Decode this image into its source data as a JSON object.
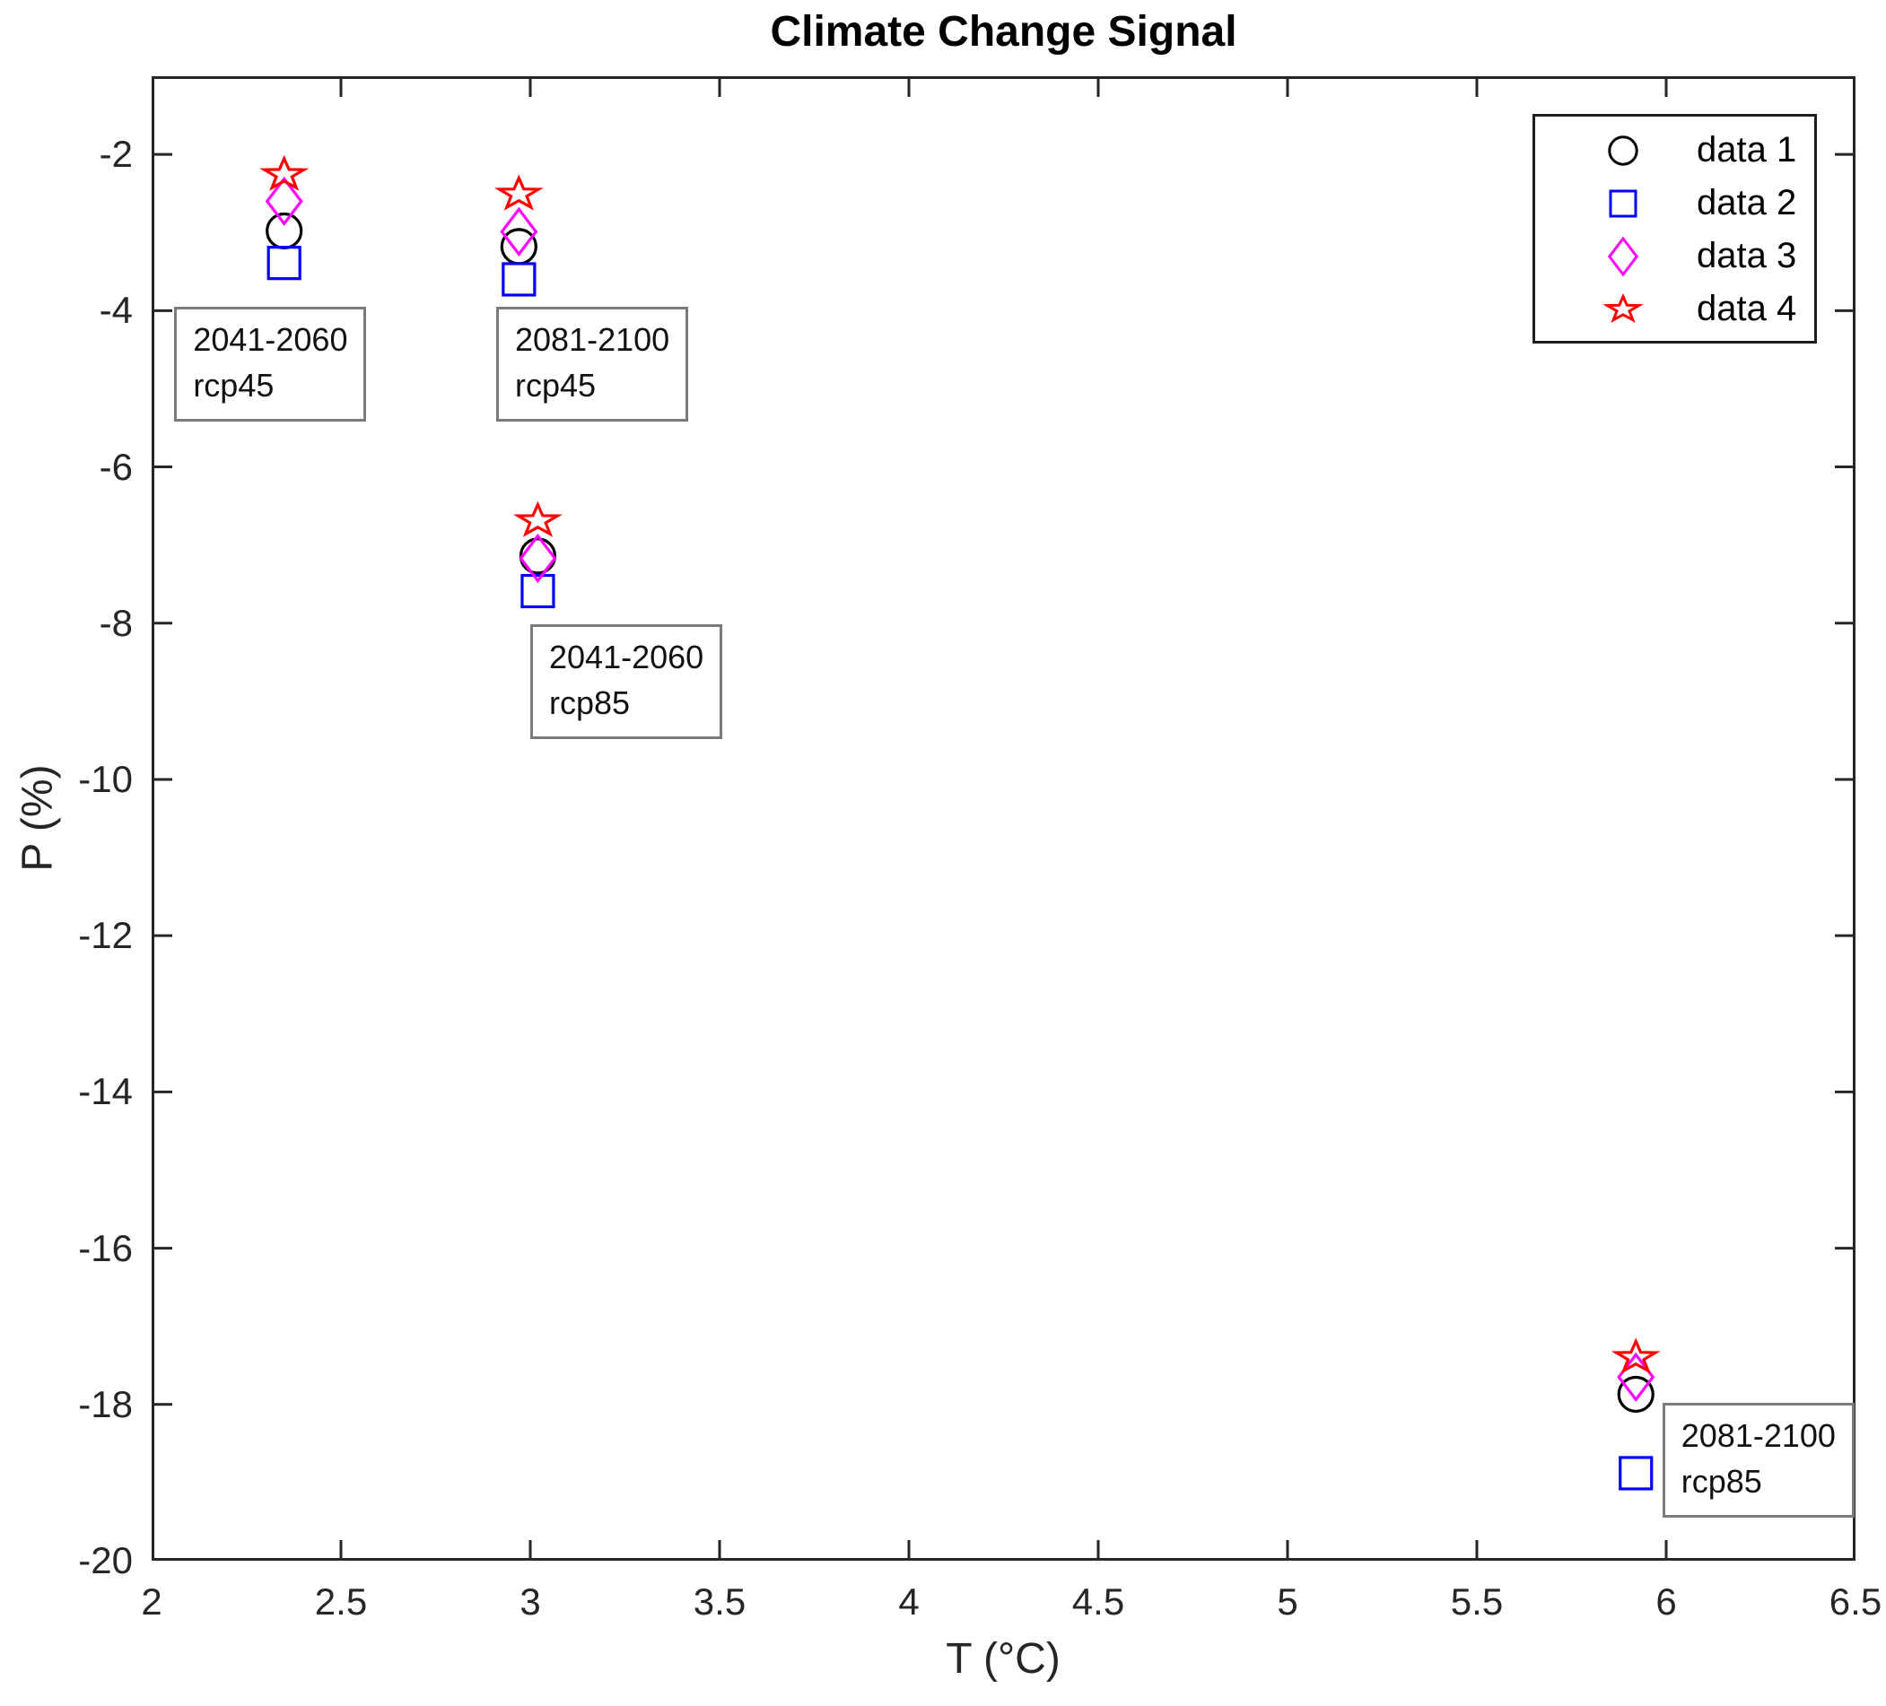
{
  "title": "Climate Change Signal",
  "axes": {
    "xlabel": "T (°C)",
    "ylabel": "P (%)",
    "xlim": [
      2,
      6.5
    ],
    "ylim": [
      -20,
      -1
    ],
    "x_tick_values": [
      2,
      2.5,
      3,
      3.5,
      4,
      4.5,
      5,
      5.5,
      6,
      6.5
    ],
    "x_tick_labels": [
      "2",
      "2.5",
      "3",
      "3.5",
      "4",
      "4.5",
      "5",
      "5.5",
      "6",
      "6.5"
    ],
    "y_tick_values": [
      -20,
      -18,
      -16,
      -14,
      -12,
      -10,
      -8,
      -6,
      -4,
      -2
    ],
    "y_tick_labels": [
      "-20",
      "-18",
      "-16",
      "-14",
      "-12",
      "-10",
      "-8",
      "-6",
      "-4",
      "-2"
    ],
    "axis_color": "#262626",
    "grid": false
  },
  "legend": {
    "position": "top-right",
    "items": [
      {
        "label": "data 1",
        "marker": "circle",
        "color": "#000000"
      },
      {
        "label": "data 2",
        "marker": "square",
        "color": "#0000ff"
      },
      {
        "label": "data 3",
        "marker": "diamond",
        "color": "#ff00ff"
      },
      {
        "label": "data 4",
        "marker": "star",
        "color": "#ff0000"
      }
    ]
  },
  "chart_data": {
    "type": "scatter",
    "title": "Climate Change Signal",
    "xlabel": "T (°C)",
    "ylabel": "P (%)",
    "xlim": [
      2,
      6.5
    ],
    "ylim": [
      -20,
      -1
    ],
    "legend_position": "top-right",
    "x": [
      2.35,
      2.97,
      3.02,
      5.92
    ],
    "series": [
      {
        "name": "data 1",
        "marker": "circle",
        "color": "#000000",
        "y": [
          -2.98,
          -3.18,
          -7.14,
          -17.87
        ]
      },
      {
        "name": "data 2",
        "marker": "square",
        "color": "#0000ff",
        "y": [
          -3.39,
          -3.6,
          -7.59,
          -18.88
        ]
      },
      {
        "name": "data 3",
        "marker": "diamond",
        "color": "#ff00ff",
        "y": [
          -2.6,
          -2.99,
          -7.17,
          -17.65
        ]
      },
      {
        "name": "data 4",
        "marker": "star",
        "color": "#ff0000",
        "y": [
          -2.26,
          -2.51,
          -6.69,
          -17.4
        ]
      }
    ],
    "annotations": [
      {
        "lines": [
          "2041-2060",
          "rcp45"
        ],
        "x": 2.06,
        "y": -3.95
      },
      {
        "lines": [
          "2081-2100",
          "rcp45"
        ],
        "x": 2.91,
        "y": -3.95
      },
      {
        "lines": [
          "2041-2060",
          "rcp85"
        ],
        "x": 3.0,
        "y": -8.01
      },
      {
        "lines": [
          "2081-2100",
          "rcp85"
        ],
        "x": 5.99,
        "y": -17.98
      }
    ],
    "annotation_border_color": "#7a7a7a",
    "background": "#ffffff"
  }
}
